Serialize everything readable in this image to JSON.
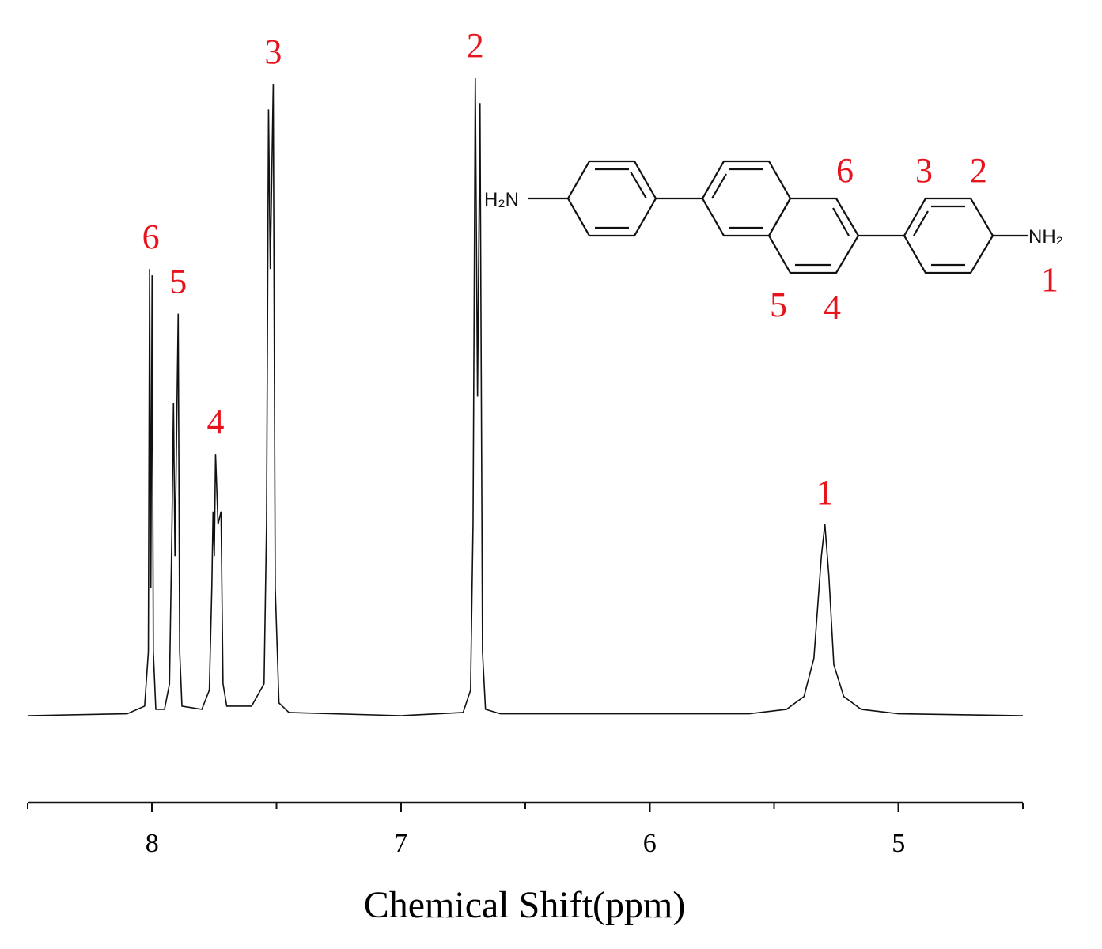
{
  "chart_data": {
    "type": "line",
    "color": "#111111",
    "x_label": "Chemical Shift(ppm)",
    "xlim": [
      8.5,
      4.5
    ],
    "ylim": [
      0,
      100
    ],
    "xticks": [
      8,
      7,
      6,
      5
    ],
    "xminorticks": [
      8.5,
      7.5,
      6.5,
      5.5,
      4.5
    ],
    "x": [
      8.5,
      8.1,
      8.03,
      8.015,
      8.01,
      8.005,
      8.0,
      7.995,
      7.985,
      7.95,
      7.93,
      7.92,
      7.914,
      7.908,
      7.895,
      7.889,
      7.88,
      7.8,
      7.77,
      7.76,
      7.755,
      7.75,
      7.745,
      7.735,
      7.723,
      7.715,
      7.7,
      7.6,
      7.55,
      7.54,
      7.532,
      7.525,
      7.513,
      7.505,
      7.49,
      7.45,
      7.0,
      6.75,
      6.72,
      6.71,
      6.701,
      6.692,
      6.682,
      6.672,
      6.66,
      6.6,
      5.6,
      5.45,
      5.38,
      5.34,
      5.31,
      5.296,
      5.28,
      5.26,
      5.22,
      5.15,
      5.0,
      4.5
    ],
    "values": [
      0,
      0.3,
      1.5,
      10,
      70,
      20,
      69,
      10,
      1,
      1,
      5,
      30,
      49,
      25,
      63,
      10,
      1.5,
      1,
      4,
      20,
      32,
      25,
      41,
      30,
      32,
      5,
      1.5,
      1.5,
      5,
      30,
      95,
      70,
      99,
      20,
      2,
      0.5,
      0,
      0.5,
      4,
      30,
      100,
      50,
      96,
      10,
      1,
      0.3,
      0.3,
      1,
      3,
      9,
      25,
      30,
      22,
      8,
      3,
      1,
      0.3,
      0
    ],
    "annotations": [
      {
        "text": "6",
        "x": 8.005,
        "y": 70
      },
      {
        "text": "5",
        "x": 7.895,
        "y": 63
      },
      {
        "text": "4",
        "x": 7.745,
        "y": 41
      },
      {
        "text": "3",
        "x": 7.513,
        "y": 99
      },
      {
        "text": "2",
        "x": 6.701,
        "y": 100
      },
      {
        "text": "1",
        "x": 5.296,
        "y": 30
      }
    ]
  },
  "molecule": {
    "left_group": "H₂N",
    "right_group": "NH₂",
    "position_labels": [
      "6",
      "3",
      "2",
      "5",
      "4",
      "1"
    ]
  }
}
